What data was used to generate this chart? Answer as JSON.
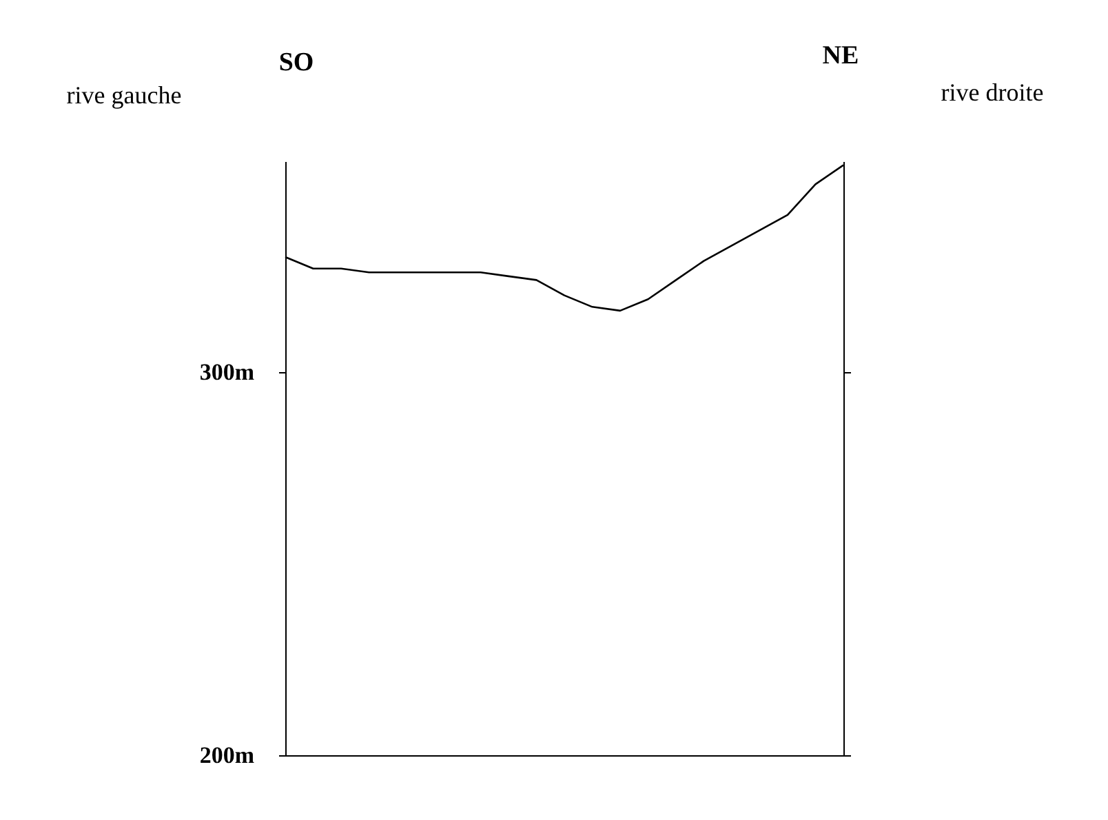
{
  "chart_data": {
    "type": "line",
    "categories": [
      null,
      null,
      null,
      null,
      null,
      null,
      null,
      null,
      null,
      null,
      null,
      null,
      null,
      null,
      null,
      null,
      null,
      null,
      null,
      null,
      null
    ],
    "series": [
      {
        "color": "#000000",
        "values": [
          330,
          327,
          327,
          326,
          326,
          326,
          326,
          326,
          325,
          324,
          320,
          317,
          316,
          319,
          324,
          329,
          333,
          337,
          341,
          349,
          354
        ]
      }
    ],
    "ylim": [
      200,
      355
    ],
    "yticks": [
      {
        "value": 200,
        "label": "200m"
      },
      {
        "value": 300,
        "label": "300m"
      }
    ],
    "tick_labels": "y",
    "grid": false,
    "marker": "none",
    "line_style": "solid",
    "annotations": [
      "SO",
      "NE",
      "rive gauche",
      "rive droite"
    ]
  }
}
